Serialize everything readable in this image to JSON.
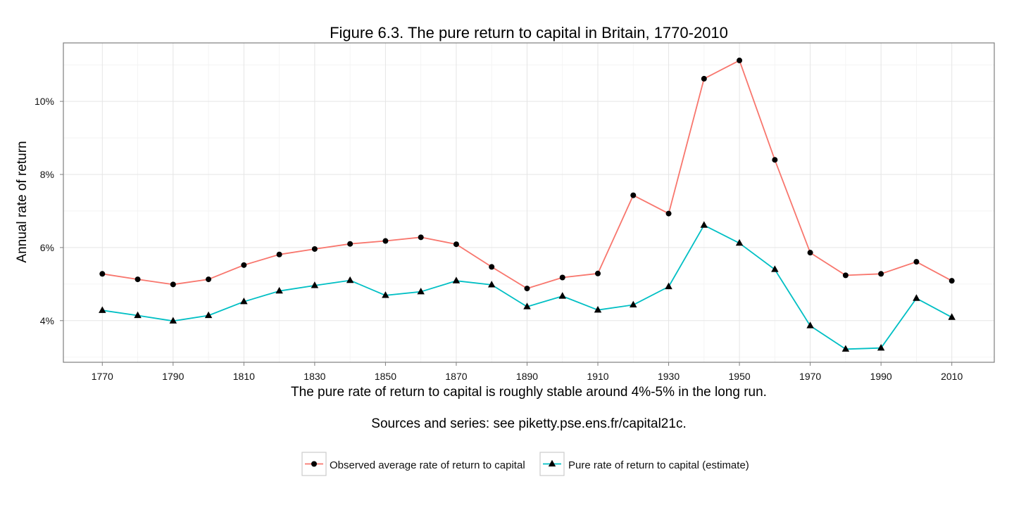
{
  "chart_data": {
    "type": "line",
    "title": "Figure 6.3. The pure return to capital in Britain, 1770-2010",
    "ylabel": "Annual rate of return",
    "xlabel": "The pure rate of return to capital is roughly stable around 4%-5% in the long run.",
    "caption": "Sources and series: see piketty.pse.ens.fr/capital21c.",
    "x": [
      1770,
      1780,
      1790,
      1800,
      1810,
      1820,
      1830,
      1840,
      1850,
      1860,
      1870,
      1880,
      1890,
      1900,
      1910,
      1920,
      1930,
      1940,
      1950,
      1960,
      1970,
      1980,
      1990,
      2000,
      2010
    ],
    "x_ticks": [
      "1770",
      "1790",
      "1810",
      "1830",
      "1850",
      "1870",
      "1890",
      "1910",
      "1930",
      "1950",
      "1970",
      "1990",
      "2010"
    ],
    "x_tick_values": [
      1770,
      1790,
      1810,
      1830,
      1850,
      1870,
      1890,
      1910,
      1930,
      1950,
      1970,
      1990,
      2010
    ],
    "xlim": [
      1759,
      2022
    ],
    "y_ticks": [
      "4%",
      "6%",
      "8%",
      "10%"
    ],
    "y_tick_values": [
      4,
      6,
      8,
      10
    ],
    "ylim": [
      2.86,
      11.6
    ],
    "grid": true,
    "legend_position": "bottom",
    "series": [
      {
        "name": "Observed average rate of return to capital",
        "color": "#F8766D",
        "marker": "circle",
        "values": [
          5.28,
          5.13,
          4.99,
          5.13,
          5.52,
          5.81,
          5.96,
          6.1,
          6.18,
          6.28,
          6.09,
          5.47,
          4.88,
          5.18,
          5.29,
          7.43,
          6.93,
          10.62,
          11.12,
          8.4,
          5.86,
          5.24,
          5.28,
          5.61,
          5.09
        ]
      },
      {
        "name": "Pure rate of return to capital (estimate)",
        "color": "#00BFC4",
        "marker": "triangle",
        "values": [
          4.28,
          4.14,
          3.99,
          4.14,
          4.52,
          4.81,
          4.96,
          5.1,
          4.69,
          4.79,
          5.09,
          4.98,
          4.38,
          4.67,
          4.29,
          4.43,
          4.93,
          6.61,
          6.12,
          5.4,
          3.86,
          3.22,
          3.25,
          4.61,
          4.09
        ]
      }
    ]
  }
}
